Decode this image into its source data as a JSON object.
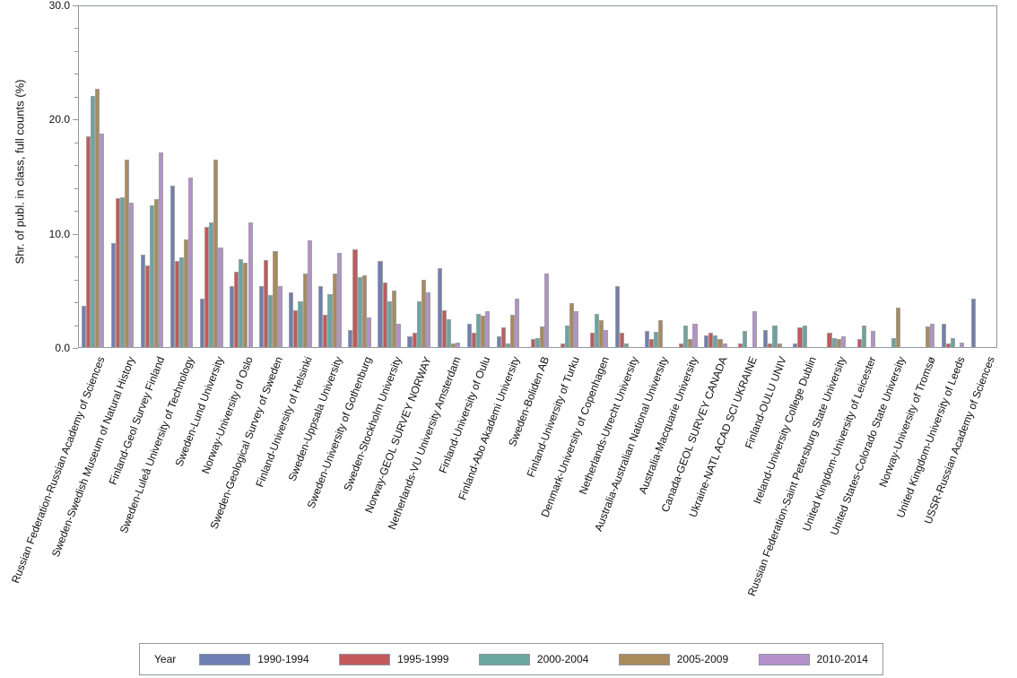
{
  "chart_data": {
    "type": "bar",
    "title": "",
    "ylabel": "Shr. of publ. in class, full counts (%)",
    "xlabel": "",
    "ylim": [
      0,
      30
    ],
    "ytick_values": [
      0,
      10,
      20,
      30
    ],
    "ytick_labels": [
      "0.0",
      "10.0",
      "20.0",
      "30.0"
    ],
    "minor_tick_step": 2,
    "grid": false,
    "legend_position": "bottom",
    "legend_title": "Year",
    "frame_color": "#8f979e",
    "bar_border_color": "#a0a0a0",
    "categories": [
      "Russian Federation-Russian Academy of Sciences",
      "Sweden-Swedish Museum of Natural History",
      "Finland-Geol Survey Finland",
      "Sweden-Luleå University of Technology",
      "Sweden-Lund University",
      "Norway-University of Oslo",
      "Sweden-Geological Survey of Sweden",
      "Finland-University of Helsinki",
      "Sweden-Uppsala University",
      "Sweden-University of Gothenburg",
      "Sweden-Stockholm University",
      "Norway-GEOL SURVEY NORWAY",
      "Netherlands-VU University Amsterdam",
      "Finland-University of Oulu",
      "Finland-Abo Akademi University",
      "Sweden-Boliden AB",
      "Finland-University of Turku",
      "Denmark-University of Copenhagen",
      "Netherlands-Utrecht University",
      "Australia-Australian National University",
      "Australia-Macquarie University",
      "Canada-GEOL SURVEY CANADA",
      "Ukraine-NATL ACAD SCI UKRAINE",
      "Finland-OULU UNIV",
      "Ireland-University College Dublin",
      "Russian Federation-Saint Petersburg State University",
      "United Kingdom-University of Leicester",
      "United States-Colorado State University",
      "Norway-University of Tromsø",
      "United Kingdom-University of Leeds",
      "USSR-Russian Academy of Sciences"
    ],
    "series": [
      {
        "name": "1990-1994",
        "color": "#6f7fb3",
        "values": [
          3.7,
          9.2,
          8.2,
          14.2,
          4.3,
          5.4,
          5.4,
          4.9,
          5.4,
          1.6,
          7.6,
          1.0,
          7.0,
          2.1,
          1.0,
          0,
          0,
          0,
          5.4,
          1.5,
          0,
          1.1,
          0,
          1.6,
          0.4,
          0,
          0,
          0,
          0,
          2.1,
          4.3
        ]
      },
      {
        "name": "1995-1999",
        "color": "#c4585b",
        "values": [
          18.5,
          13.1,
          7.2,
          7.6,
          10.6,
          6.7,
          7.7,
          3.3,
          2.9,
          8.6,
          5.7,
          1.3,
          3.3,
          1.3,
          1.8,
          0.8,
          0.4,
          1.3,
          1.3,
          0.8,
          0.4,
          1.3,
          0.4,
          0.4,
          1.8,
          1.3,
          0.8,
          0,
          0,
          0.4,
          0
        ]
      },
      {
        "name": "2000-2004",
        "color": "#69a6a0",
        "values": [
          22.1,
          13.2,
          12.5,
          7.9,
          11.0,
          7.8,
          4.6,
          4.1,
          4.7,
          6.2,
          4.1,
          4.1,
          2.5,
          3.0,
          0.4,
          0.9,
          2.0,
          3.0,
          0.4,
          1.4,
          2.0,
          1.1,
          1.5,
          2.0,
          2.0,
          0.9,
          2.0,
          0.9,
          0,
          0.9,
          0
        ]
      },
      {
        "name": "2005-2009",
        "color": "#aa8a5b",
        "values": [
          22.7,
          16.5,
          13.0,
          9.5,
          16.5,
          7.5,
          8.5,
          6.5,
          6.5,
          6.4,
          5.0,
          6.0,
          0.4,
          2.8,
          2.9,
          1.9,
          3.9,
          2.4,
          0,
          2.4,
          0.8,
          0.8,
          0,
          0.4,
          0,
          0.8,
          0,
          3.5,
          1.9,
          0,
          0
        ]
      },
      {
        "name": "2010-2014",
        "color": "#b491ca",
        "values": [
          18.8,
          12.7,
          17.1,
          14.9,
          8.8,
          11.0,
          5.4,
          9.4,
          8.3,
          2.7,
          2.1,
          4.9,
          0.5,
          3.2,
          4.3,
          6.5,
          3.2,
          1.6,
          0,
          0,
          2.1,
          0.4,
          3.2,
          0,
          0,
          1.0,
          1.5,
          0,
          2.1,
          0.5,
          0
        ]
      }
    ]
  }
}
